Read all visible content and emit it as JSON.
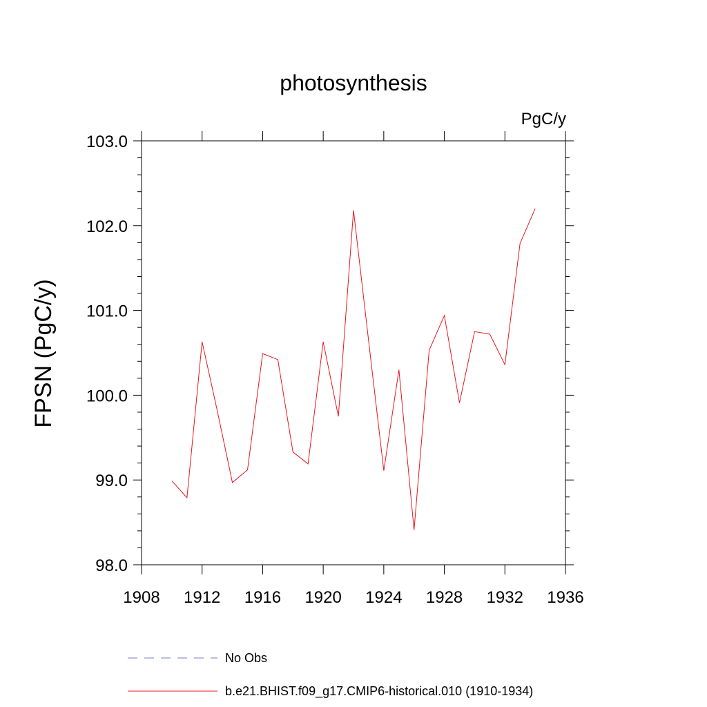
{
  "chart_data": {
    "type": "line",
    "title": "photosynthesis",
    "units_label": "PgC/y",
    "ylabel": "FPSN  (PgC/y)",
    "xlabel": "",
    "xlim": [
      1908,
      1936
    ],
    "ylim": [
      98.0,
      103.0
    ],
    "x_ticks": [
      1908,
      1912,
      1916,
      1920,
      1924,
      1928,
      1932,
      1936
    ],
    "x_tick_labels": [
      "1908",
      "1912",
      "1916",
      "1920",
      "1924",
      "1928",
      "1932",
      "1936"
    ],
    "y_ticks": [
      98.0,
      99.0,
      100.0,
      101.0,
      102.0,
      103.0
    ],
    "y_tick_labels": [
      "98.0",
      "99.0",
      "100.0",
      "101.0",
      "102.0",
      "103.0"
    ],
    "grid": false,
    "legend_position": "bottom",
    "series": [
      {
        "name": "b.e21.BHIST.f09_g17.CMIP6-historical.010 (1910-1934)",
        "color": "#e8141c",
        "style": "solid",
        "x": [
          1910,
          1911,
          1912,
          1913,
          1914,
          1915,
          1916,
          1917,
          1918,
          1919,
          1920,
          1921,
          1922,
          1923,
          1924,
          1925,
          1926,
          1927,
          1928,
          1929,
          1930,
          1931,
          1932,
          1933,
          1934
        ],
        "values": [
          98.99,
          98.79,
          100.63,
          99.82,
          98.97,
          99.12,
          100.49,
          100.42,
          99.33,
          99.19,
          100.63,
          99.75,
          102.18,
          100.64,
          99.11,
          100.3,
          98.41,
          100.53,
          100.94,
          99.91,
          100.75,
          100.72,
          100.36,
          101.79,
          102.2
        ]
      }
    ],
    "legend": [
      {
        "label": "No Obs",
        "color": "#7a78c8",
        "style": "dashed"
      },
      {
        "label": "b.e21.BHIST.f09_g17.CMIP6-historical.010 (1910-1934)",
        "color": "#e8141c",
        "style": "solid"
      }
    ]
  }
}
